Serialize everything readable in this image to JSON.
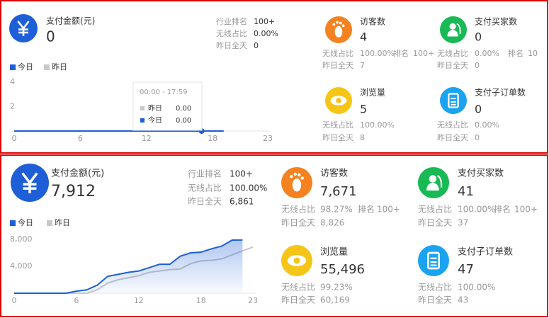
{
  "panels": [
    {
      "main": {
        "title": "支付金额(元)",
        "value": "0",
        "stats": [
          {
            "label": "行业排名",
            "value": "100+"
          },
          {
            "label": "无线占比",
            "value": "0.00%"
          },
          {
            "label": "昨日全天",
            "value": "0"
          }
        ]
      },
      "chart": {
        "ylim": [
          0,
          4
        ],
        "yticks": [
          2,
          4
        ],
        "xlim": [
          0,
          23
        ],
        "xticks": [
          0,
          6,
          12,
          18,
          23
        ],
        "series": [
          {
            "name": "今日",
            "color": "#1e5fd8",
            "values": [
              0,
              0,
              0,
              0,
              0,
              0,
              0,
              0,
              0,
              0,
              0,
              0,
              0,
              0,
              0,
              0,
              0,
              0,
              0,
              0
            ]
          },
          {
            "name": "昨日",
            "color": "#c8c8c8",
            "values": [
              0,
              0,
              0,
              0,
              0,
              0,
              0,
              0,
              0,
              0,
              0,
              0,
              0,
              0,
              0,
              0,
              0,
              0,
              0,
              0
            ]
          }
        ],
        "area": false,
        "tooltip": {
          "time": "00:00 - 17:59",
          "rows": [
            {
              "label": "昨日",
              "value": "0.00"
            },
            {
              "label": "今日",
              "value": "0.00"
            }
          ]
        }
      },
      "cards": [
        {
          "title": "访客数",
          "value": "4",
          "color": "#f58220",
          "rows": [
            {
              "label": "无线占比",
              "value": "100.00%",
              "rank_label": "排名",
              "rank": "100+"
            },
            {
              "label": "昨日全天",
              "value": "7"
            }
          ]
        },
        {
          "title": "支付买家数",
          "value": "0",
          "color": "#19b955",
          "rows": [
            {
              "label": "无线占比",
              "value": "0.00%",
              "rank_label": "排名",
              "rank": "10"
            },
            {
              "label": "昨日全天",
              "value": "0"
            }
          ]
        },
        {
          "title": "浏览量",
          "value": "5",
          "color": "#f5c518",
          "rows": [
            {
              "label": "无线占比",
              "value": "100.00%"
            },
            {
              "label": "昨日全天",
              "value": "8"
            }
          ]
        },
        {
          "title": "支付子订单数",
          "value": "0",
          "color": "#1aa3f0",
          "rows": [
            {
              "label": "无线占比",
              "value": "0.00%"
            },
            {
              "label": "昨日全天",
              "value": "0"
            }
          ]
        }
      ]
    },
    {
      "main": {
        "title": "支付金额(元)",
        "value": "7,912",
        "stats": [
          {
            "label": "行业排名",
            "value": "100+"
          },
          {
            "label": "无线占比",
            "value": "100.00%"
          },
          {
            "label": "昨日全天",
            "value": "6,861"
          }
        ]
      },
      "chart": {
        "ylim": [
          0,
          8000
        ],
        "yticks": [
          {
            "value": 4000,
            "label": "4,000"
          },
          {
            "value": 8000,
            "label": "8,000"
          }
        ],
        "xlim": [
          0,
          23
        ],
        "xticks": [
          0,
          6,
          12,
          18,
          23
        ],
        "series": [
          {
            "name": "今日",
            "color": "#1e5fd8",
            "values": [
              0,
              0,
              0,
              0,
              0,
              0,
              300,
              500,
              1200,
              2500,
              2800,
              3100,
              3300,
              3800,
              4300,
              4300,
              5500,
              6000,
              6100,
              6600,
              7000,
              7900,
              7912
            ]
          },
          {
            "name": "昨日",
            "color": "#c8c8c8",
            "values": [
              0,
              0,
              0,
              0,
              0,
              0,
              0,
              0,
              500,
              1500,
              2000,
              2300,
              2600,
              3100,
              3300,
              3500,
              3600,
              4400,
              4800,
              4900,
              5100,
              5700,
              6300,
              6861
            ]
          }
        ],
        "area": true
      },
      "cards": [
        {
          "title": "访客数",
          "value": "7,671",
          "color": "#f58220",
          "rows": [
            {
              "label": "无线占比",
              "value": "98.27%",
              "rank_label": "排名",
              "rank": "100+"
            },
            {
              "label": "昨日全天",
              "value": "8,826"
            }
          ]
        },
        {
          "title": "支付买家数",
          "value": "41",
          "color": "#19b955",
          "rows": [
            {
              "label": "无线占比",
              "value": "100.00%",
              "rank_label": "排名",
              "rank": "100+"
            },
            {
              "label": "昨日全天",
              "value": "37"
            }
          ]
        },
        {
          "title": "浏览量",
          "value": "55,496",
          "color": "#f5c518",
          "rows": [
            {
              "label": "无线占比",
              "value": "99.23%"
            },
            {
              "label": "昨日全天",
              "value": "60,169"
            }
          ]
        },
        {
          "title": "支付子订单数",
          "value": "47",
          "color": "#1aa3f0",
          "rows": [
            {
              "label": "无线占比",
              "value": "100.00%"
            },
            {
              "label": "昨日全天",
              "value": "43"
            }
          ]
        }
      ]
    }
  ]
}
